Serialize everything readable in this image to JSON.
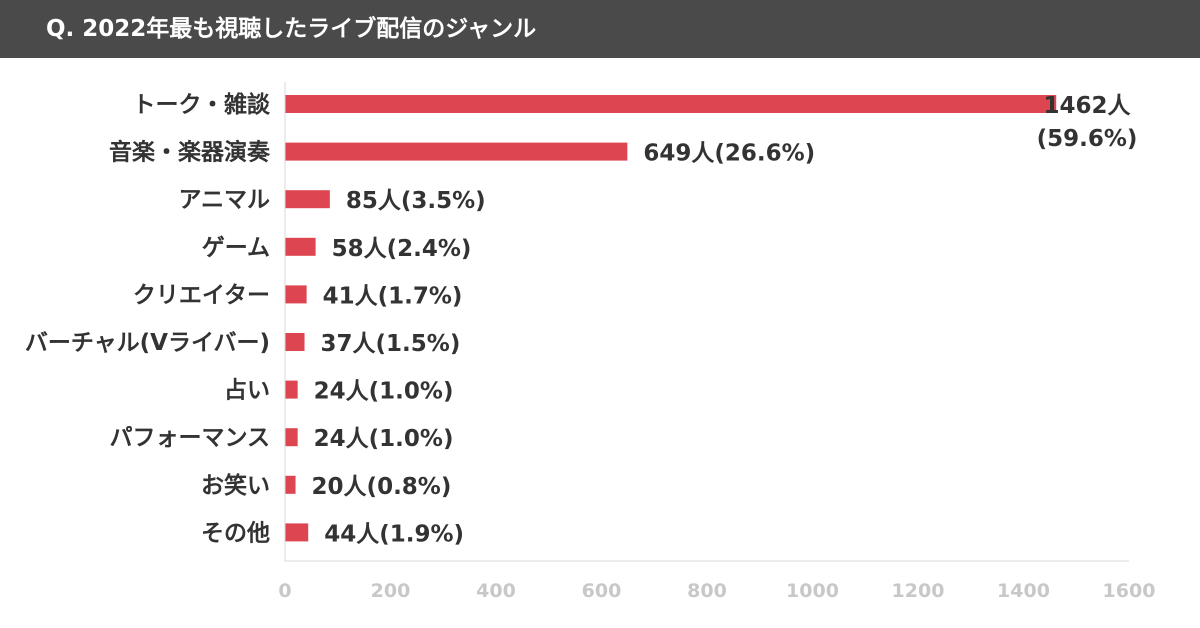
{
  "header": {
    "title": "Q. 2022年最も視聴したライブ配信のジャンル"
  },
  "colors": {
    "bar": "#dd4651",
    "header_bg": "#4a4a4a",
    "axis_text": "#c8c8c8"
  },
  "chart_data": {
    "type": "bar",
    "orientation": "horizontal",
    "title": "Q. 2022年最も視聴したライブ配信のジャンル",
    "xlabel": "",
    "ylabel": "",
    "xlim": [
      0,
      1600
    ],
    "x_ticks": [
      "0",
      "200",
      "400",
      "600",
      "800",
      "1000",
      "1200",
      "1400",
      "1600"
    ],
    "grid": false,
    "categories": [
      "トーク・雑談",
      "音楽・楽器演奏",
      "アニマル",
      "ゲーム",
      "クリエイター",
      "バーチャル(Vライバー)",
      "占い",
      "パフォーマンス",
      "お笑い",
      "その他"
    ],
    "values": [
      1462,
      649,
      85,
      58,
      41,
      37,
      24,
      24,
      20,
      44
    ],
    "percentages": [
      59.6,
      26.6,
      3.5,
      2.4,
      1.7,
      1.5,
      1.0,
      1.0,
      0.8,
      1.9
    ],
    "data_labels": [
      "1462人(59.6%)",
      "649人(26.6%)",
      "85人(3.5%)",
      "58人(2.4%)",
      "41人(1.7%)",
      "37人(1.5%)",
      "24人(1.0%)",
      "24人(1.0%)",
      "20人(0.8%)",
      "44人(1.9%)"
    ],
    "data_label_lines_first": [
      "1462人",
      "(59.6%)"
    ]
  }
}
